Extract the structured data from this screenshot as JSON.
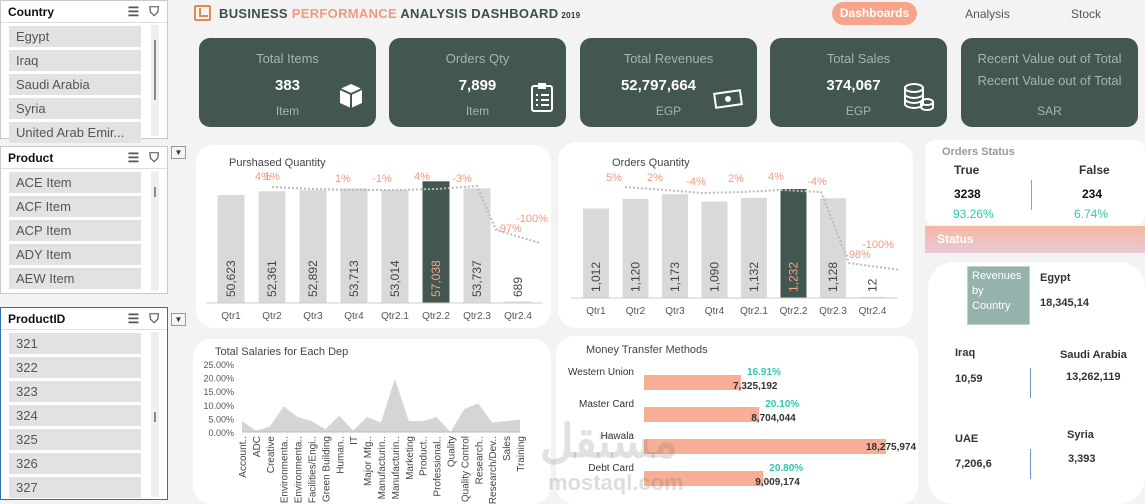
{
  "slicers": {
    "country": {
      "title": "Country",
      "items": [
        "Egypt",
        "Iraq",
        "Saudi Arabia",
        "Syria",
        "United Arab Emir..."
      ]
    },
    "product": {
      "title": "Product",
      "items": [
        "ACE Item",
        "ACF Item",
        "ACP Item",
        "ADY Item",
        "AEW Item"
      ]
    },
    "productid": {
      "title": "ProductID",
      "items": [
        "321",
        "322",
        "323",
        "324",
        "325",
        "326",
        "327"
      ]
    }
  },
  "header": {
    "title_a": "BUSINESS ",
    "title_b": "PERFORMANCE",
    "title_c": " ANALYSIS DASHBOARD",
    "year": "2019",
    "nav": [
      "Dashboards",
      "Analysis",
      "Stock"
    ]
  },
  "kpis": [
    {
      "label": "Total Items",
      "value": "383",
      "unit": "Item",
      "icon": "box-icon"
    },
    {
      "label": "Orders Qty",
      "value": "7,899",
      "unit": "Item",
      "icon": "clipboard-icon"
    },
    {
      "label": "Total Revenues",
      "value": "52,797,664",
      "unit": "EGP",
      "icon": "cash-icon"
    },
    {
      "label": "Total Sales",
      "value": "374,067",
      "unit": "EGP",
      "icon": "coins-icon"
    },
    {
      "label": "Recent Value out of Total",
      "label2": "Recent Value out of Total",
      "unit": "SAR"
    }
  ],
  "chart_data": [
    {
      "type": "bar",
      "title": "Purshased Quantity",
      "categories": [
        "Qtr1",
        "Qtr2",
        "Qtr3",
        "Qtr4",
        "Qtr2.1",
        "Qtr2.2",
        "Qtr2.3",
        "Qtr2.4"
      ],
      "values": [
        50623,
        52361,
        52892,
        53713,
        53014,
        57038,
        53737,
        689
      ],
      "highlight": 5,
      "change_labels": [
        "4%",
        "1%",
        "1%",
        "-1%",
        "4%",
        "-3%",
        "-97%",
        "-100%"
      ]
    },
    {
      "type": "bar",
      "title": "Orders Quantity",
      "categories": [
        "Qtr1",
        "Qtr2",
        "Qtr3",
        "Qtr4",
        "Qtr2.1",
        "Qtr2.2",
        "Qtr2.3",
        "Qtr2.4"
      ],
      "values": [
        1012,
        1120,
        1173,
        1090,
        1132,
        1232,
        1128,
        12
      ],
      "highlight": 5,
      "change_labels": [
        "5%",
        "2%",
        "-4%",
        "2%",
        "4%",
        "-4%",
        "-98%",
        "-100%"
      ]
    },
    {
      "type": "area",
      "title": "Total Salaries for Each Dep",
      "categories": [
        "Account..",
        "ADC",
        "Creative",
        "Environmenta..",
        "Environmenta..",
        "Facilities/Engi..",
        "Green Building",
        "Human..",
        "IT",
        "Major Mfg..",
        "Manufacturin..",
        "Manufacturin..",
        "Marketing",
        "Product..",
        "Professional..",
        "Quality",
        "Quality Control",
        "Research..",
        "Research/Dev..",
        "Sales",
        "Training"
      ],
      "values": [
        0.04,
        0.005,
        0.02,
        0.095,
        0.055,
        0.04,
        0.01,
        0.06,
        0.005,
        0.055,
        0.035,
        0.196,
        0.04,
        0.04,
        0.055,
        0.0,
        0.085,
        0.105,
        0.035,
        0.04,
        0.045
      ],
      "yticks": [
        "25.00%",
        "20.00%",
        "15.00%",
        "10.00%",
        "5.00%",
        "0.00%"
      ],
      "ylim": [
        0,
        0.25
      ]
    },
    {
      "type": "bar",
      "title": "Money Transfer Methods",
      "categories": [
        "Western Union",
        "Master Card",
        "Hawala",
        "Debt Card"
      ],
      "values": [
        7325192,
        8704044,
        18275974,
        9009174
      ],
      "value_labels": [
        "7,325,192",
        "8,704,044",
        "18,275,974",
        "9,009,174"
      ],
      "percent_labels": [
        "16.91%",
        "20.10%",
        "",
        "20.80%"
      ]
    }
  ],
  "orders_status": {
    "title": "Orders Status",
    "true_label": "True",
    "false_label": "False",
    "true_value": "3238",
    "false_value": "234",
    "true_pct": "93.26%",
    "false_pct": "6.74%"
  },
  "status_bar": "Status",
  "revenues": {
    "label": "Revenues by Country",
    "countries": [
      {
        "name": "Egypt",
        "value": "18,345,14"
      },
      {
        "name": "Iraq",
        "value": "10,59"
      },
      {
        "name": "Saudi Arabia",
        "value": "13,262,119"
      },
      {
        "name": "UAE",
        "value": "7,206,6"
      },
      {
        "name": "Syria",
        "value": "3,393"
      }
    ]
  },
  "watermark": {
    "arabic": "مستقل",
    "latin": "mostaql.com"
  },
  "colors": {
    "dark": "#43564f",
    "accent": "#f6a58b",
    "teal": "#2cc9b2",
    "bar": "#d9d9d9"
  }
}
